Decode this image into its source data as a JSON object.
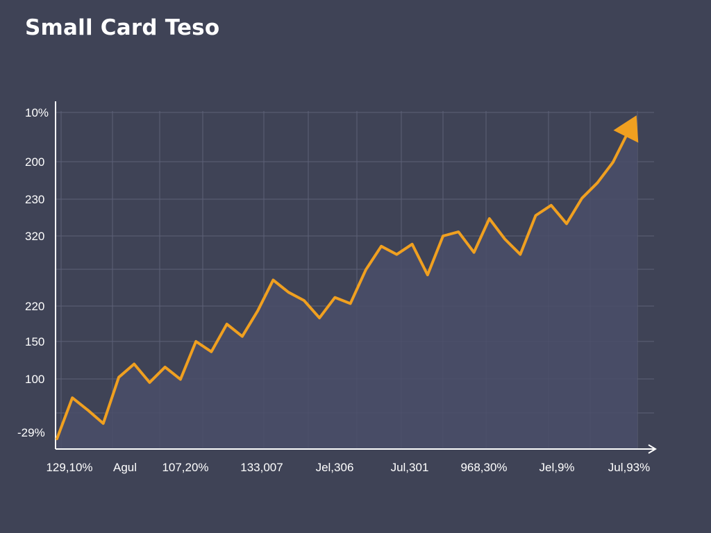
{
  "title": "Small Card Teso",
  "colors": {
    "background": "#3f4356",
    "area_fill": "#4a4e68",
    "grid": "#5c6077",
    "axis": "#ffffff",
    "line": "#f0a020",
    "text": "#ffffff"
  },
  "chart_data": {
    "type": "area",
    "title": "Small Card Teso",
    "xlabel": "",
    "ylabel": "",
    "y_tick_labels": [
      "10%",
      "200",
      "230",
      "320",
      "",
      "220",
      "150",
      "100",
      "",
      "-29%"
    ],
    "x_tick_labels": [
      "129,10%",
      "Agul",
      "107,20%",
      "133,007",
      "Jel,306",
      "Jul,301",
      "968,30%",
      "Jel,9%",
      "Jul,93%"
    ],
    "grid": true,
    "end_arrow": true,
    "series": [
      {
        "values": [
          -10,
          30,
          18,
          5,
          50,
          63,
          45,
          60,
          48,
          85,
          75,
          102,
          90,
          115,
          145,
          133,
          125,
          108,
          128,
          122,
          155,
          178,
          170,
          180,
          150,
          188,
          192,
          172,
          205,
          185,
          170,
          208,
          218,
          200,
          225,
          240,
          260,
          290
        ]
      }
    ]
  }
}
